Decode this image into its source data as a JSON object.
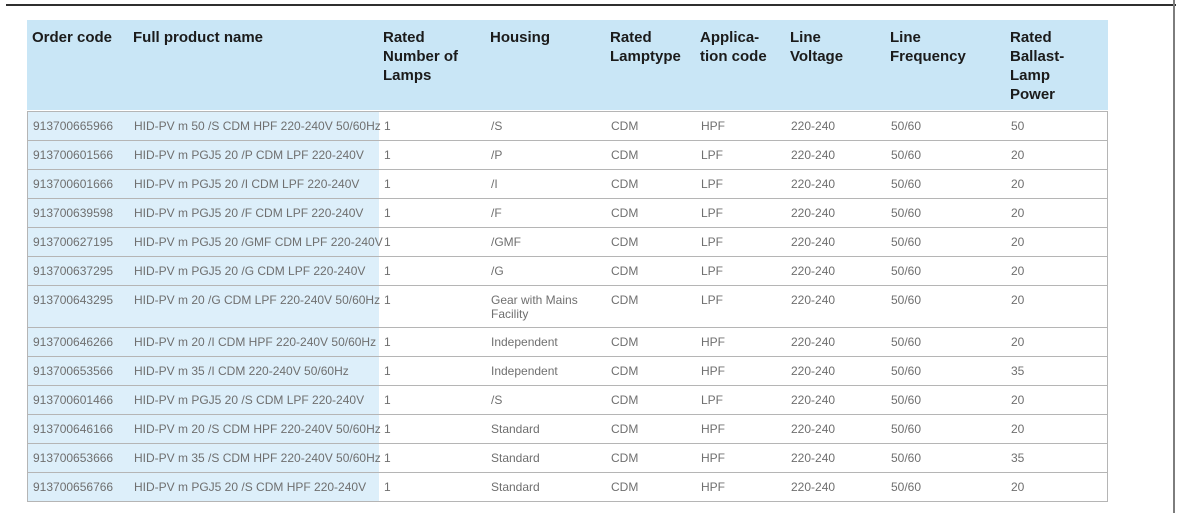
{
  "page": {
    "background_color": "#ffffff",
    "top_rule_color": "#2f2f2f",
    "right_edge_color": "#7d7d7d"
  },
  "table": {
    "header_bg_color": "#c9e6f6",
    "shaded_column_bg_color": "#ddeffa",
    "header_text_color": "#1b1b1b",
    "body_text_color": "#6f6f6f",
    "border_color": "#b5b5b5",
    "headers": [
      "Order code",
      "Full product name",
      "Rated\nNumber of\nLamps",
      "Housing",
      "Rated\nLamptype",
      "Applica-\ntion code",
      "Line\nVoltage",
      "Line\nFrequency",
      "Rated\nBallast-\nLamp\nPower"
    ],
    "rows": [
      [
        "913700665966",
        "HID-PV m 50 /S CDM HPF 220-240V 50/60Hz",
        "1",
        "/S",
        "CDM",
        "HPF",
        "220-240",
        "50/60",
        "50"
      ],
      [
        "913700601566",
        "HID-PV m PGJ5 20 /P CDM LPF 220-240V",
        "1",
        "/P",
        "CDM",
        "LPF",
        "220-240",
        "50/60",
        "20"
      ],
      [
        "913700601666",
        "HID-PV m PGJ5 20 /I CDM LPF 220-240V",
        "1",
        "/I",
        "CDM",
        "LPF",
        "220-240",
        "50/60",
        "20"
      ],
      [
        "913700639598",
        "HID-PV m PGJ5 20 /F CDM LPF 220-240V",
        "1",
        "/F",
        "CDM",
        "LPF",
        "220-240",
        "50/60",
        "20"
      ],
      [
        "913700627195",
        "HID-PV m PGJ5 20 /GMF CDM LPF 220-240V",
        "1",
        "/GMF",
        "CDM",
        "LPF",
        "220-240",
        "50/60",
        "20"
      ],
      [
        "913700637295",
        "HID-PV m PGJ5 20 /G CDM LPF 220-240V",
        "1",
        "/G",
        "CDM",
        "LPF",
        "220-240",
        "50/60",
        "20"
      ],
      [
        "913700643295",
        "HID-PV m 20 /G CDM LPF 220-240V 50/60Hz",
        "1",
        "Gear with Mains Facility",
        "CDM",
        "LPF",
        "220-240",
        "50/60",
        "20"
      ],
      [
        "913700646266",
        "HID-PV m 20 /I CDM HPF 220-240V 50/60Hz",
        "1",
        "Independent",
        "CDM",
        "HPF",
        "220-240",
        "50/60",
        "20"
      ],
      [
        "913700653566",
        "HID-PV m 35 /I CDM 220-240V 50/60Hz",
        "1",
        "Independent",
        "CDM",
        "HPF",
        "220-240",
        "50/60",
        "35"
      ],
      [
        "913700601466",
        "HID-PV m PGJ5 20 /S CDM LPF 220-240V",
        "1",
        "/S",
        "CDM",
        "LPF",
        "220-240",
        "50/60",
        "20"
      ],
      [
        "913700646166",
        "HID-PV m 20 /S CDM HPF 220-240V 50/60Hz",
        "1",
        "Standard",
        "CDM",
        "HPF",
        "220-240",
        "50/60",
        "20"
      ],
      [
        "913700653666",
        "HID-PV m 35 /S CDM HPF 220-240V 50/60Hz",
        "1",
        "Standard",
        "CDM",
        "HPF",
        "220-240",
        "50/60",
        "35"
      ],
      [
        "913700656766",
        "HID-PV m PGJ5 20 /S CDM HPF 220-240V",
        "1",
        "Standard",
        "CDM",
        "HPF",
        "220-240",
        "50/60",
        "20"
      ]
    ]
  }
}
